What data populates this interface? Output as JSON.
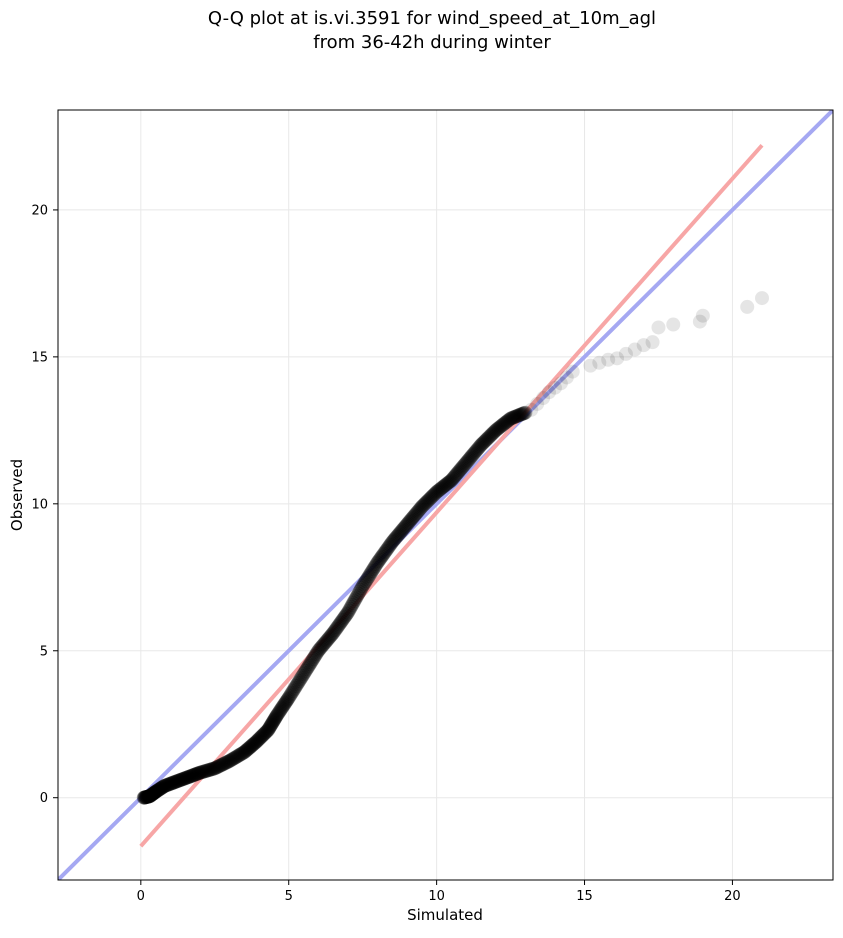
{
  "chart_data": {
    "type": "scatter",
    "title": "Q-Q plot at is.vi.3591 for wind_speed_at_10m_agl",
    "subtitle": "from 36-42h during winter",
    "xlabel": "Simulated",
    "ylabel": "Observed",
    "xlim": [
      -2.8,
      23.4
    ],
    "ylim": [
      -2.8,
      23.4
    ],
    "xticks": [
      0,
      5,
      10,
      15,
      20
    ],
    "yticks": [
      0,
      5,
      10,
      15,
      20
    ],
    "xtick_labels": [
      "0",
      "5",
      "10",
      "15",
      "20"
    ],
    "ytick_labels": [
      "0",
      "5",
      "10",
      "15",
      "20"
    ],
    "grid": true,
    "reference_lines": [
      {
        "label": "identity (y = x)",
        "color": "#a5a8f2",
        "points": [
          [
            -2.8,
            -2.8
          ],
          [
            23.4,
            23.4
          ]
        ]
      },
      {
        "label": "fitted line",
        "color": "#f7a6a6",
        "points": [
          [
            0.0,
            -1.65
          ],
          [
            21.0,
            22.2
          ]
        ]
      }
    ],
    "point_color": "#000000",
    "quantile_path": [
      [
        0.1,
        0.0
      ],
      [
        0.3,
        0.05
      ],
      [
        0.5,
        0.2
      ],
      [
        0.8,
        0.4
      ],
      [
        1.2,
        0.55
      ],
      [
        1.6,
        0.7
      ],
      [
        2.0,
        0.85
      ],
      [
        2.5,
        1.0
      ],
      [
        3.0,
        1.25
      ],
      [
        3.5,
        1.55
      ],
      [
        3.9,
        1.9
      ],
      [
        4.3,
        2.3
      ],
      [
        4.6,
        2.8
      ],
      [
        5.0,
        3.4
      ],
      [
        5.5,
        4.2
      ],
      [
        6.0,
        5.0
      ],
      [
        6.5,
        5.6
      ],
      [
        7.0,
        6.3
      ],
      [
        7.5,
        7.2
      ],
      [
        8.0,
        8.0
      ],
      [
        8.5,
        8.7
      ],
      [
        9.0,
        9.3
      ],
      [
        9.5,
        9.9
      ],
      [
        10.0,
        10.4
      ],
      [
        10.5,
        10.8
      ],
      [
        11.0,
        11.4
      ],
      [
        11.5,
        12.0
      ],
      [
        12.0,
        12.5
      ],
      [
        12.5,
        12.9
      ],
      [
        13.0,
        13.1
      ]
    ],
    "tail_points": [
      [
        13.2,
        13.2
      ],
      [
        13.4,
        13.4
      ],
      [
        13.6,
        13.6
      ],
      [
        13.8,
        13.8
      ],
      [
        14.0,
        13.95
      ],
      [
        14.2,
        14.1
      ],
      [
        14.4,
        14.3
      ],
      [
        14.6,
        14.5
      ],
      [
        15.2,
        14.7
      ],
      [
        15.5,
        14.8
      ],
      [
        15.8,
        14.9
      ],
      [
        16.1,
        14.95
      ],
      [
        16.4,
        15.1
      ],
      [
        16.7,
        15.25
      ],
      [
        17.0,
        15.4
      ],
      [
        17.3,
        15.5
      ],
      [
        17.5,
        16.0
      ],
      [
        18.0,
        16.1
      ],
      [
        18.9,
        16.2
      ],
      [
        19.0,
        16.4
      ],
      [
        20.5,
        16.7
      ],
      [
        21.0,
        17.0
      ]
    ]
  }
}
